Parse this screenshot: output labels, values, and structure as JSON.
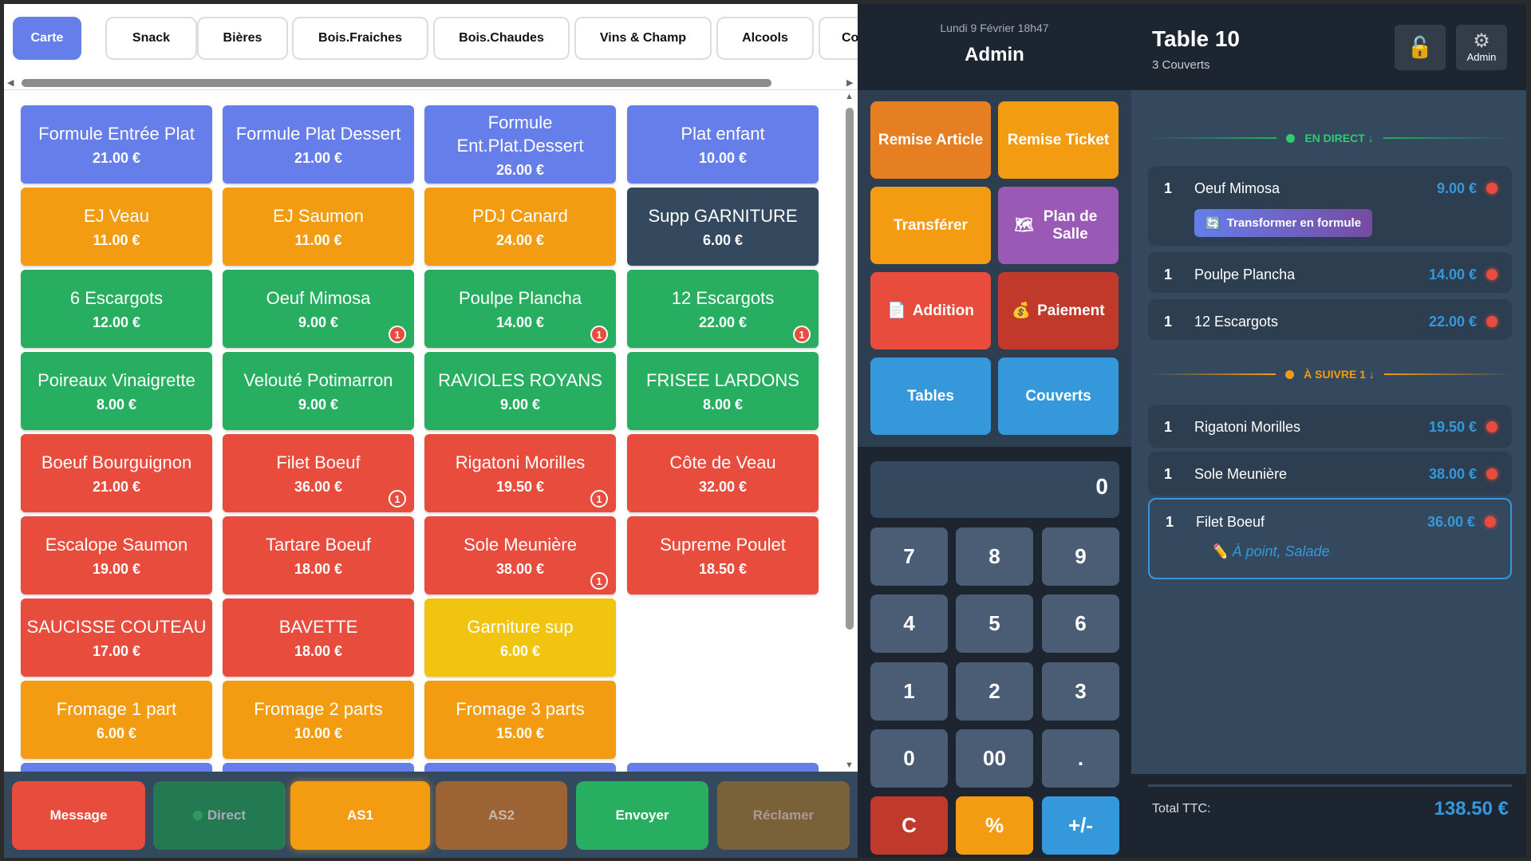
{
  "tabs": [
    {
      "label": "Carte",
      "active": true
    },
    {
      "label": "Snack"
    },
    {
      "label": "Bières"
    },
    {
      "label": "Bois.Fraiches"
    },
    {
      "label": "Bois.Chaudes"
    },
    {
      "label": "Vins & Champ"
    },
    {
      "label": "Alcools"
    },
    {
      "label": "Co"
    }
  ],
  "colors": {
    "blue": "#667eea",
    "orange": "#f39c12",
    "dark": "#34495e",
    "green": "#27ae60",
    "red": "#e74c3c",
    "yellow": "#f1c40f"
  },
  "products": [
    {
      "name": "Formule Entrée Plat",
      "price": "21.00 €",
      "color": "blue"
    },
    {
      "name": "Formule Plat Dessert",
      "price": "21.00 €",
      "color": "blue"
    },
    {
      "name": "Formule Ent.Plat.Dessert",
      "price": "26.00 €",
      "color": "blue"
    },
    {
      "name": "Plat enfant",
      "price": "10.00 €",
      "color": "blue"
    },
    {
      "name": "EJ Veau",
      "price": "11.00 €",
      "color": "orange"
    },
    {
      "name": "EJ Saumon",
      "price": "11.00 €",
      "color": "orange"
    },
    {
      "name": "PDJ Canard",
      "price": "24.00 €",
      "color": "orange"
    },
    {
      "name": "Supp GARNITURE",
      "price": "6.00 €",
      "color": "dark"
    },
    {
      "name": "6 Escargots",
      "price": "12.00 €",
      "color": "green"
    },
    {
      "name": "Oeuf Mimosa",
      "price": "9.00 €",
      "color": "green",
      "badge": "1",
      "badge_style": "filled"
    },
    {
      "name": "Poulpe Plancha",
      "price": "14.00 €",
      "color": "green",
      "badge": "1",
      "badge_style": "filled"
    },
    {
      "name": "12 Escargots",
      "price": "22.00 €",
      "color": "green",
      "badge": "1",
      "badge_style": "filled"
    },
    {
      "name": "Poireaux Vinaigrette",
      "price": "8.00 €",
      "color": "green"
    },
    {
      "name": "Velouté Potimarron",
      "price": "9.00 €",
      "color": "green"
    },
    {
      "name": "RAVIOLES ROYANS",
      "price": "9.00 €",
      "color": "green"
    },
    {
      "name": "FRISEE LARDONS",
      "price": "8.00 €",
      "color": "green"
    },
    {
      "name": "Boeuf Bourguignon",
      "price": "21.00 €",
      "color": "red"
    },
    {
      "name": "Filet Boeuf",
      "price": "36.00 €",
      "color": "red",
      "badge": "1",
      "badge_style": "outline"
    },
    {
      "name": "Rigatoni Morilles",
      "price": "19.50 €",
      "color": "red",
      "badge": "1",
      "badge_style": "outline"
    },
    {
      "name": "Côte de Veau",
      "price": "32.00 €",
      "color": "red"
    },
    {
      "name": "Escalope Saumon",
      "price": "19.00 €",
      "color": "red"
    },
    {
      "name": "Tartare Boeuf",
      "price": "18.00 €",
      "color": "red"
    },
    {
      "name": "Sole Meunière",
      "price": "38.00 €",
      "color": "red",
      "badge": "1",
      "badge_style": "outline"
    },
    {
      "name": "Supreme Poulet",
      "price": "18.50 €",
      "color": "red"
    },
    {
      "name": "SAUCISSE COUTEAU",
      "price": "17.00 €",
      "color": "red"
    },
    {
      "name": "BAVETTE",
      "price": "18.00 €",
      "color": "red"
    },
    {
      "name": "Garniture sup",
      "price": "6.00 €",
      "color": "yellow"
    },
    null,
    {
      "name": "Fromage 1 part",
      "price": "6.00 €",
      "color": "orange"
    },
    {
      "name": "Fromage 2 parts",
      "price": "10.00 €",
      "color": "orange"
    },
    {
      "name": "Fromage 3 parts",
      "price": "15.00 €",
      "color": "orange"
    },
    null,
    {
      "color": "blue"
    },
    {
      "color": "blue"
    },
    {
      "color": "blue"
    },
    {
      "color": "blue"
    }
  ],
  "bottom_bar": {
    "message": "Message",
    "direct": "Direct",
    "as1": "AS1",
    "as2": "AS2",
    "envoyer": "Envoyer",
    "reclamer": "Réclamer"
  },
  "header": {
    "datetime": "Lundi 9 Février 18h47",
    "user": "Admin",
    "table": "Table 10",
    "covers": "3 Couverts",
    "admin_label": "Admin"
  },
  "actions": {
    "remise_article": "Remise Article",
    "remise_ticket": "Remise Ticket",
    "transferer": "Transférer",
    "plan_de_salle": "Plan de Salle",
    "addition": "Addition",
    "paiement": "Paiement",
    "tables": "Tables",
    "couverts": "Couverts"
  },
  "keypad": {
    "display": "0",
    "keys": [
      "7",
      "8",
      "9",
      "4",
      "5",
      "6",
      "1",
      "2",
      "3",
      "0",
      "00",
      "."
    ],
    "clear": "C",
    "percent": "%",
    "sign": "+/-"
  },
  "order": {
    "direct_label": "EN DIRECT ↓",
    "next_label": "À SUIVRE 1 ↓",
    "formula_button": "Transformer en formule",
    "items": [
      {
        "qty": "1",
        "name": "Oeuf Mimosa",
        "price": "9.00 €"
      },
      {
        "qty": "1",
        "name": "Poulpe Plancha",
        "price": "14.00 €"
      },
      {
        "qty": "1",
        "name": "12 Escargots",
        "price": "22.00 €"
      },
      {
        "qty": "1",
        "name": "Rigatoni Morilles",
        "price": "19.50 €"
      },
      {
        "qty": "1",
        "name": "Sole Meunière",
        "price": "38.00 €"
      },
      {
        "qty": "1",
        "name": "Filet Boeuf",
        "price": "36.00 €",
        "note": "À point, Salade",
        "selected": true
      }
    ],
    "total_label": "Total TTC:",
    "total": "138.50 €"
  }
}
